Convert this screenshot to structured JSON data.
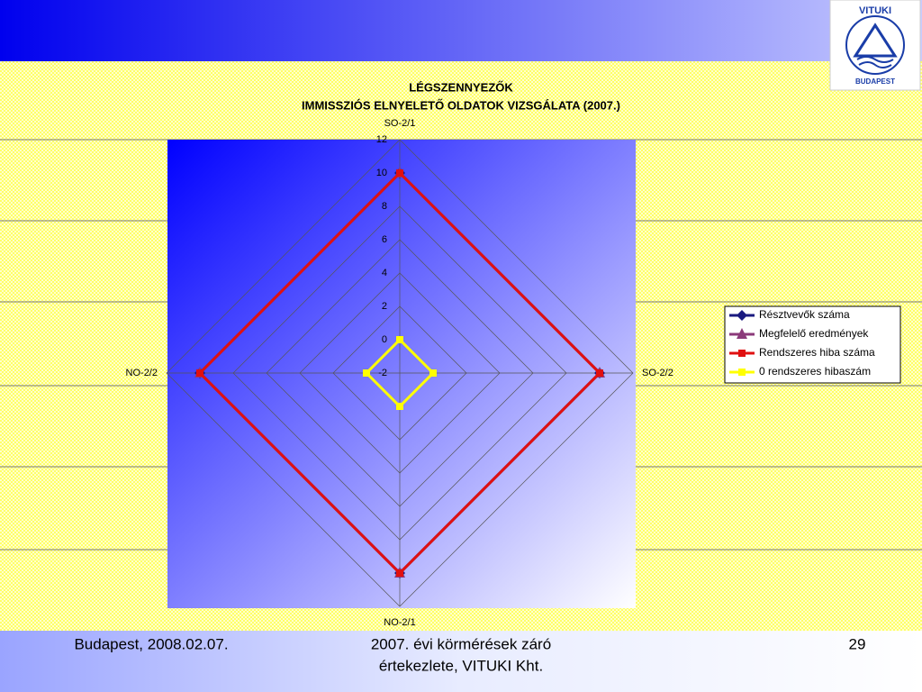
{
  "chart_data": {
    "type": "radar",
    "title": "LÉGSZENNYEZŐK",
    "subtitle": "IMMISSZIÓS ELNYELETŐ OLDATOK VIZSGÁLATA  (2007.)",
    "categories": [
      "SO-2/1",
      "SO-2/2",
      "NO-2/1",
      "NO-2/2"
    ],
    "series": [
      {
        "name": "Résztvevők száma",
        "color": "#1a1a80",
        "marker": "diamond",
        "values": [
          10,
          10,
          10,
          10
        ]
      },
      {
        "name": "Megfelelő eredmények",
        "color": "#8b3a7a",
        "marker": "triangle",
        "values": [
          10,
          10,
          10,
          10
        ]
      },
      {
        "name": "Rendszeres hiba száma",
        "color": "#e01010",
        "marker": "square",
        "values": [
          10,
          10,
          10,
          10
        ]
      },
      {
        "name": "0 rendszeres hibaszám",
        "color": "#ffff00",
        "marker": "square",
        "values": [
          0,
          0,
          0,
          0
        ]
      }
    ],
    "ylim": [
      -2,
      12
    ],
    "yticks": [
      -2,
      0,
      2,
      4,
      6,
      8,
      10,
      12
    ],
    "grid": true,
    "legend": "right"
  },
  "footer": {
    "left": "Budapest, 2008.02.07.",
    "center": [
      "2007. évi körmérések záró",
      "értekezlete, VITUKI Kht."
    ],
    "right": "29"
  },
  "logo": {
    "top": "VITUKI",
    "bottom": "BUDAPEST"
  }
}
